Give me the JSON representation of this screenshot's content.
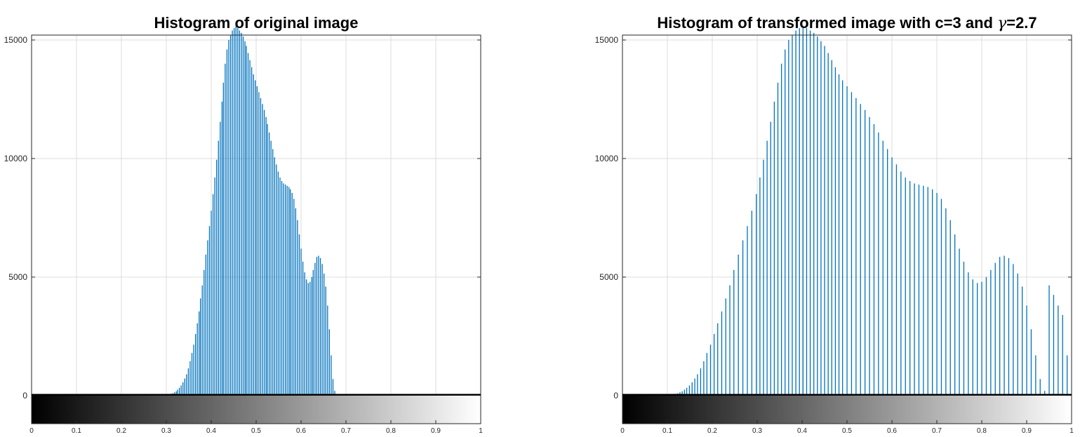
{
  "figure": {
    "background": "#ffffff",
    "bar_color": "#0072bd",
    "grid_color": "#dcdcdc"
  },
  "chart_data": [
    {
      "type": "bar",
      "title": "Histogram of original image",
      "xlim": [
        0,
        1
      ],
      "ylim": [
        0,
        15000
      ],
      "yticks": [
        0,
        5000,
        10000,
        15000
      ],
      "ytick_labels": [
        "0",
        "5000",
        "10000",
        "15000"
      ],
      "xticks": [
        0,
        0.1,
        0.2,
        0.3,
        0.4,
        0.5,
        0.6,
        0.7,
        0.8,
        0.9,
        1
      ],
      "xtick_labels": [
        "0",
        "0.1",
        "0.2",
        "0.3",
        "0.4",
        "0.5",
        "0.6",
        "0.7",
        "0.8",
        "0.9",
        "1"
      ],
      "grid": true,
      "colorbar": "gray",
      "bins": 256,
      "x": [
        0.306,
        0.31,
        0.314,
        0.318,
        0.322,
        0.325,
        0.329,
        0.333,
        0.337,
        0.341,
        0.345,
        0.349,
        0.353,
        0.357,
        0.361,
        0.365,
        0.369,
        0.373,
        0.376,
        0.38,
        0.384,
        0.388,
        0.392,
        0.396,
        0.4,
        0.404,
        0.408,
        0.412,
        0.416,
        0.42,
        0.424,
        0.427,
        0.431,
        0.435,
        0.439,
        0.443,
        0.447,
        0.451,
        0.455,
        0.459,
        0.463,
        0.467,
        0.471,
        0.475,
        0.478,
        0.482,
        0.486,
        0.49,
        0.494,
        0.498,
        0.502,
        0.506,
        0.51,
        0.514,
        0.518,
        0.522,
        0.525,
        0.529,
        0.533,
        0.537,
        0.541,
        0.545,
        0.549,
        0.553,
        0.557,
        0.561,
        0.565,
        0.569,
        0.573,
        0.576,
        0.58,
        0.584,
        0.588,
        0.592,
        0.596,
        0.6,
        0.604,
        0.608,
        0.612,
        0.616,
        0.62,
        0.624,
        0.627,
        0.631,
        0.635,
        0.639,
        0.643,
        0.647,
        0.651,
        0.655,
        0.659,
        0.663,
        0.667,
        0.671,
        0.675
      ],
      "values": [
        50,
        80,
        100,
        140,
        180,
        250,
        330,
        430,
        560,
        720,
        900,
        1150,
        1450,
        1800,
        2150,
        2600,
        3050,
        3550,
        4100,
        4650,
        5300,
        5950,
        6550,
        7150,
        7800,
        8500,
        9200,
        9950,
        10750,
        11550,
        12400,
        13200,
        14000,
        14600,
        15000,
        15200,
        15400,
        15500,
        15600,
        15500,
        15400,
        15300,
        15150,
        14950,
        14750,
        14450,
        14150,
        13850,
        13550,
        13300,
        13050,
        12800,
        12550,
        12300,
        12050,
        11750,
        11450,
        11100,
        10750,
        10400,
        10050,
        9750,
        9450,
        9200,
        9050,
        8950,
        8900,
        8850,
        8800,
        8700,
        8550,
        8300,
        7900,
        7400,
        6800,
        6200,
        5650,
        5200,
        4900,
        4750,
        4800,
        5000,
        5300,
        5600,
        5850,
        5900,
        5800,
        5550,
        5150,
        4600,
        3800,
        2800,
        1700,
        700,
        200
      ]
    },
    {
      "type": "bar",
      "title": "Histogram of transformed image with c=3 and γ=2.7",
      "title_main": "Histogram of transformed image with c=3 and ",
      "title_greek": "γ",
      "title_tail": "=2.7",
      "xlim": [
        0,
        1
      ],
      "ylim": [
        0,
        15000
      ],
      "yticks": [
        0,
        5000,
        10000,
        15000
      ],
      "ytick_labels": [
        "0",
        "5000",
        "10000",
        "15000"
      ],
      "xticks": [
        0,
        0.1,
        0.2,
        0.3,
        0.4,
        0.5,
        0.6,
        0.7,
        0.8,
        0.9,
        1
      ],
      "xtick_labels": [
        "0",
        "0.1",
        "0.2",
        "0.3",
        "0.4",
        "0.5",
        "0.6",
        "0.7",
        "0.8",
        "0.9",
        "1"
      ],
      "grid": true,
      "colorbar": "gray",
      "bins": 256,
      "x": [
        0.113,
        0.118,
        0.123,
        0.128,
        0.133,
        0.138,
        0.143,
        0.149,
        0.155,
        0.161,
        0.167,
        0.174,
        0.181,
        0.188,
        0.196,
        0.204,
        0.212,
        0.221,
        0.23,
        0.239,
        0.248,
        0.258,
        0.268,
        0.278,
        0.288,
        0.298,
        0.306,
        0.314,
        0.322,
        0.33,
        0.338,
        0.346,
        0.354,
        0.362,
        0.37,
        0.378,
        0.386,
        0.394,
        0.402,
        0.41,
        0.418,
        0.426,
        0.434,
        0.442,
        0.45,
        0.458,
        0.466,
        0.474,
        0.482,
        0.49,
        0.5,
        0.51,
        0.52,
        0.53,
        0.54,
        0.55,
        0.56,
        0.57,
        0.58,
        0.59,
        0.6,
        0.61,
        0.62,
        0.63,
        0.64,
        0.65,
        0.66,
        0.67,
        0.68,
        0.69,
        0.7,
        0.71,
        0.72,
        0.73,
        0.74,
        0.75,
        0.76,
        0.77,
        0.78,
        0.79,
        0.8,
        0.81,
        0.82,
        0.83,
        0.84,
        0.85,
        0.86,
        0.87,
        0.88,
        0.89,
        0.9,
        0.91,
        0.92,
        0.93,
        0.94,
        0.95,
        0.96,
        0.97,
        0.98,
        0.99
      ],
      "values": [
        50,
        80,
        100,
        140,
        180,
        250,
        330,
        430,
        560,
        720,
        900,
        1150,
        1450,
        1800,
        2150,
        2600,
        3050,
        3550,
        4100,
        4650,
        5300,
        5950,
        6550,
        7150,
        7800,
        8500,
        9200,
        9950,
        10750,
        11550,
        12400,
        13200,
        14000,
        14600,
        15000,
        15200,
        15400,
        15500,
        15600,
        15500,
        15400,
        15300,
        15150,
        14950,
        14750,
        14450,
        14150,
        13850,
        13550,
        13300,
        13050,
        12800,
        12550,
        12300,
        12050,
        11750,
        11450,
        11100,
        10750,
        10400,
        10050,
        9750,
        9450,
        9200,
        9050,
        8950,
        8900,
        8850,
        8800,
        8700,
        8550,
        8300,
        7900,
        7400,
        6800,
        6200,
        5650,
        5200,
        4900,
        4750,
        4800,
        5000,
        5300,
        5600,
        5850,
        5900,
        5800,
        5550,
        5150,
        4600,
        3800,
        2800,
        1700,
        700,
        200,
        4650,
        4250,
        3800,
        3400,
        1700
      ]
    }
  ]
}
